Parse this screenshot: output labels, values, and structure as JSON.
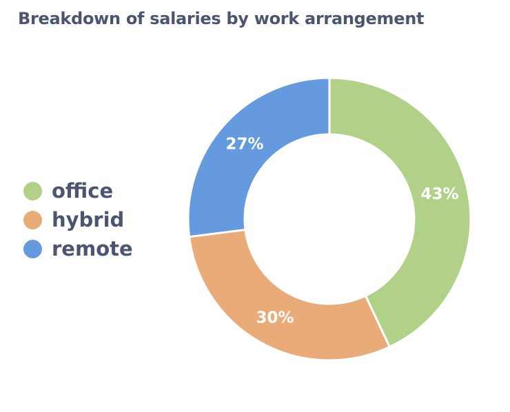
{
  "chart_data": {
    "type": "pie",
    "title": "Breakdown of salaries by work arrangement",
    "categories": [
      "office",
      "hybrid",
      "remote"
    ],
    "values": [
      43,
      30,
      27
    ],
    "labels": [
      "43%",
      "30%",
      "27%"
    ],
    "colors": [
      "#b1d188",
      "#e9ab78",
      "#659bde"
    ],
    "donut": true,
    "legend_position": "left"
  }
}
